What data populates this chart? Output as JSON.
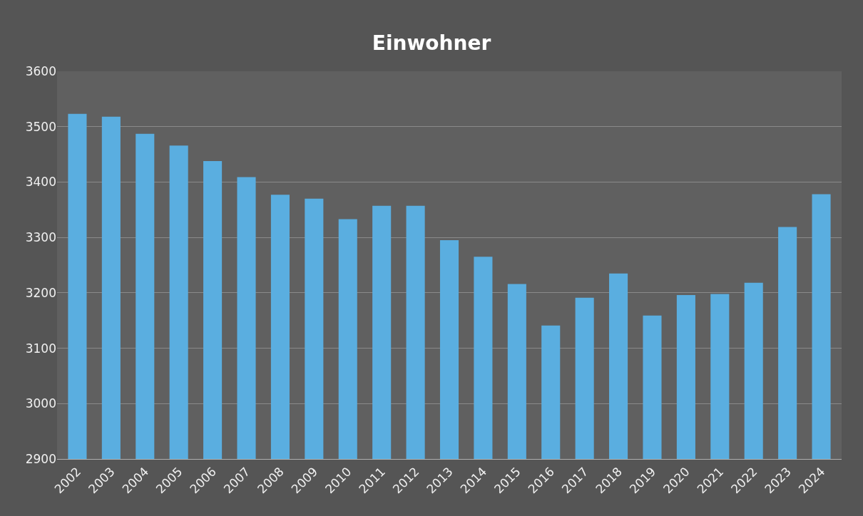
{
  "chart_data": {
    "type": "bar",
    "title": "Einwohner",
    "categories": [
      "2002",
      "2003",
      "2004",
      "2005",
      "2006",
      "2007",
      "2008",
      "2009",
      "2010",
      "2011",
      "2012",
      "2013",
      "2014",
      "2015",
      "2016",
      "2017",
      "2018",
      "2019",
      "2020",
      "2021",
      "2022",
      "2023",
      "2024"
    ],
    "values": [
      3523,
      3518,
      3487,
      3466,
      3438,
      3409,
      3377,
      3370,
      3333,
      3357,
      3357,
      3295,
      3265,
      3216,
      3141,
      3191,
      3235,
      3159,
      3196,
      3198,
      3218,
      3319,
      3378
    ],
    "color": "#5aaee0",
    "ylim": [
      2900,
      3600
    ],
    "yticks": [
      2900,
      3000,
      3100,
      3200,
      3300,
      3400,
      3500,
      3600
    ],
    "grid": "y"
  }
}
